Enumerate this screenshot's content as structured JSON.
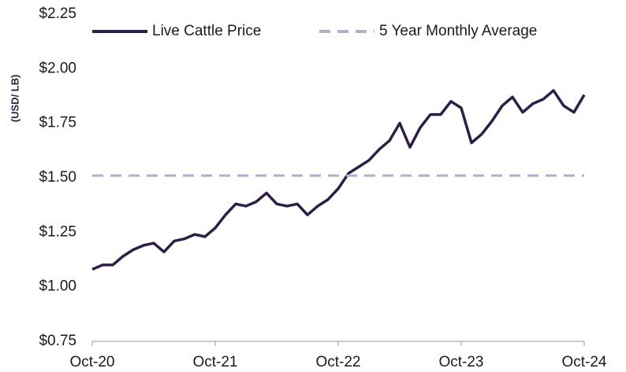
{
  "chart_data": {
    "type": "line",
    "y_label": "(USD/ LB)",
    "xlim": [
      "2020-10",
      "2024-10"
    ],
    "xticks": [
      {
        "value": "2020-10",
        "label": "Oct-20"
      },
      {
        "value": "2021-10",
        "label": "Oct-21"
      },
      {
        "value": "2022-10",
        "label": "Oct-22"
      },
      {
        "value": "2023-10",
        "label": "Oct-23"
      },
      {
        "value": "2024-10",
        "label": "Oct-24"
      }
    ],
    "ylim": [
      0.75,
      2.25
    ],
    "yticks": [
      {
        "value": 0.75,
        "label": "$0.75"
      },
      {
        "value": 1.0,
        "label": "$1.00"
      },
      {
        "value": 1.25,
        "label": "$1.25"
      },
      {
        "value": 1.5,
        "label": "$1.50"
      },
      {
        "value": 1.75,
        "label": "$1.75"
      },
      {
        "value": 2.0,
        "label": "$2.00"
      },
      {
        "value": 2.25,
        "label": "$2.25"
      }
    ],
    "grid": false,
    "legend": "top",
    "series": [
      {
        "name": "Live Cattle Price",
        "color": "#2d1f45",
        "dashed": false,
        "x": [
          "2020-10",
          "2020-11",
          "2020-12",
          "2021-01",
          "2021-02",
          "2021-03",
          "2021-04",
          "2021-05",
          "2021-06",
          "2021-07",
          "2021-08",
          "2021-09",
          "2021-10",
          "2021-11",
          "2021-12",
          "2022-01",
          "2022-02",
          "2022-03",
          "2022-04",
          "2022-05",
          "2022-06",
          "2022-07",
          "2022-08",
          "2022-09",
          "2022-10",
          "2022-11",
          "2022-12",
          "2023-01",
          "2023-02",
          "2023-03",
          "2023-04",
          "2023-05",
          "2023-06",
          "2023-07",
          "2023-08",
          "2023-09",
          "2023-10",
          "2023-11",
          "2023-12",
          "2024-01",
          "2024-02",
          "2024-03",
          "2024-04",
          "2024-05",
          "2024-06",
          "2024-07",
          "2024-08",
          "2024-09",
          "2024-10"
        ],
        "values": [
          1.08,
          1.1,
          1.1,
          1.14,
          1.17,
          1.19,
          1.2,
          1.16,
          1.21,
          1.22,
          1.24,
          1.23,
          1.27,
          1.33,
          1.38,
          1.37,
          1.39,
          1.43,
          1.38,
          1.37,
          1.38,
          1.33,
          1.37,
          1.4,
          1.45,
          1.52,
          1.55,
          1.58,
          1.63,
          1.67,
          1.75,
          1.64,
          1.73,
          1.79,
          1.79,
          1.85,
          1.82,
          1.66,
          1.7,
          1.76,
          1.83,
          1.87,
          1.8,
          1.84,
          1.86,
          1.9,
          1.83,
          1.8,
          1.88
        ]
      },
      {
        "name": "5 Year Monthly Average",
        "color": "#b3aec9",
        "dashed": true,
        "x": [
          "2020-10",
          "2024-10"
        ],
        "values": [
          1.51,
          1.51
        ]
      }
    ]
  }
}
